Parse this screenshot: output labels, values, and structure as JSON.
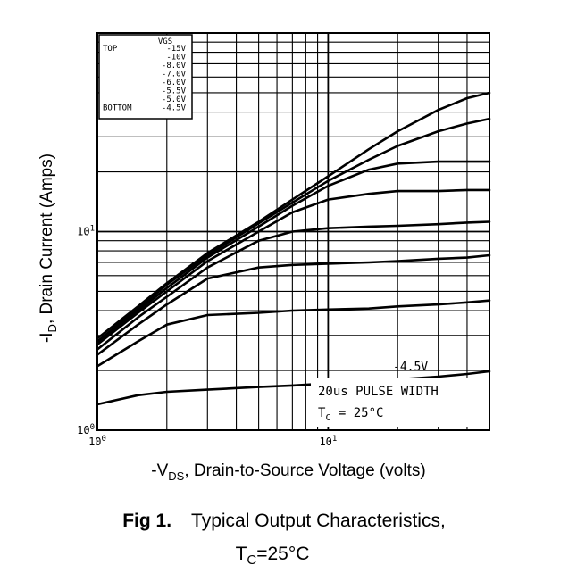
{
  "chart_data": {
    "type": "line",
    "x_scale": "log",
    "y_scale": "log",
    "xlim": [
      1,
      50
    ],
    "ylim": [
      1,
      100
    ],
    "grid": true,
    "xlabel_main": "-V",
    "xlabel_sub": "DS",
    "xlabel_rest": ", Drain-to-Source Voltage (volts)",
    "ylabel_main": "-I",
    "ylabel_sub": "D",
    "ylabel_rest": ", Drain Current (Amps)",
    "x_ticks": [
      {
        "value": 1,
        "base": "10",
        "exp": "0"
      },
      {
        "value": 10,
        "base": "10",
        "exp": "1"
      }
    ],
    "y_ticks": [
      {
        "value": 1,
        "base": "10",
        "exp": "0"
      },
      {
        "value": 10,
        "base": "10",
        "exp": "1"
      }
    ],
    "legend": {
      "position": "top-left",
      "header": "VGS",
      "top_label": "TOP",
      "bottom_label": "BOTTOM",
      "entries": [
        "-15V",
        "-10V",
        "-8.0V",
        "-7.0V",
        "-6.0V",
        "-5.5V",
        "-5.0V",
        "-4.5V"
      ]
    },
    "annotations": {
      "curve_label": "-4.5V",
      "pulse": "20us PULSE WIDTH",
      "temp_main": "T",
      "temp_sub": "C",
      "temp_rest": " = 25°C"
    },
    "series": [
      {
        "name": "-15V",
        "x": [
          1,
          1.5,
          2,
          3,
          5,
          7,
          10,
          15,
          20,
          30,
          40,
          50
        ],
        "y": [
          2.9,
          4.2,
          5.5,
          7.8,
          11.2,
          14.5,
          19,
          26,
          32,
          41,
          47,
          50
        ]
      },
      {
        "name": "-10V",
        "x": [
          1,
          1.5,
          2,
          3,
          5,
          7,
          10,
          15,
          20,
          30,
          40,
          50
        ],
        "y": [
          2.8,
          4.1,
          5.4,
          7.6,
          11,
          14,
          18,
          23,
          27,
          32,
          35,
          37
        ]
      },
      {
        "name": "-8.0V",
        "x": [
          1,
          1.5,
          2,
          3,
          5,
          7,
          10,
          15,
          20,
          30,
          40,
          50
        ],
        "y": [
          2.75,
          4.0,
          5.2,
          7.4,
          10.6,
          13.5,
          17,
          20.5,
          22,
          22.5,
          22.5,
          22.5
        ]
      },
      {
        "name": "-7.0V",
        "x": [
          1,
          1.5,
          2,
          3,
          5,
          7,
          10,
          15,
          20,
          30,
          40,
          50
        ],
        "y": [
          2.7,
          3.9,
          5.0,
          7.1,
          10.0,
          12.5,
          14.5,
          15.5,
          16,
          16,
          16.2,
          16.2
        ]
      },
      {
        "name": "-6.0V",
        "x": [
          1,
          1.5,
          2,
          3,
          5,
          7,
          10,
          15,
          20,
          30,
          40,
          50
        ],
        "y": [
          2.55,
          3.7,
          4.7,
          6.6,
          9.0,
          10.0,
          10.4,
          10.6,
          10.7,
          10.9,
          11.1,
          11.2
        ]
      },
      {
        "name": "-5.5V",
        "x": [
          1,
          1.5,
          2,
          3,
          5,
          7,
          10,
          15,
          20,
          30,
          40,
          50
        ],
        "y": [
          2.4,
          3.4,
          4.3,
          5.8,
          6.6,
          6.8,
          6.9,
          7.0,
          7.1,
          7.3,
          7.4,
          7.6
        ]
      },
      {
        "name": "-5.0V",
        "x": [
          1,
          1.5,
          2,
          3,
          5,
          7,
          10,
          15,
          20,
          30,
          40,
          50
        ],
        "y": [
          2.1,
          2.8,
          3.4,
          3.8,
          3.9,
          4.0,
          4.05,
          4.1,
          4.2,
          4.3,
          4.4,
          4.5
        ]
      },
      {
        "name": "-4.5V",
        "x": [
          1,
          1.5,
          2,
          3,
          5,
          7,
          10,
          15,
          20,
          30,
          40,
          50
        ],
        "y": [
          1.35,
          1.5,
          1.56,
          1.6,
          1.65,
          1.68,
          1.72,
          1.76,
          1.8,
          1.86,
          1.92,
          1.98
        ]
      }
    ]
  },
  "caption": {
    "fig_label": "Fig 1.",
    "title": "Typical Output Characteristics,",
    "line2_main": "T",
    "line2_sub": "C",
    "line2_rest": "=25°C"
  }
}
